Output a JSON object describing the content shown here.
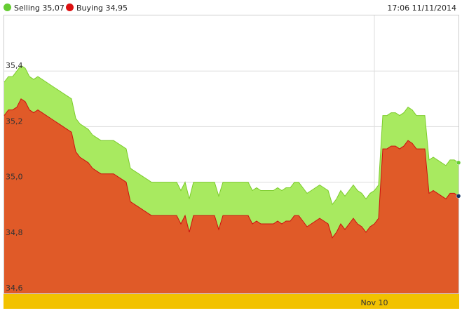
{
  "header": {
    "legend_selling": "Selling 35,07",
    "legend_buying": "Buying 34,95",
    "timestamp": "17:06 11/11/2014"
  },
  "colors": {
    "selling_fill": "#a8ea60",
    "selling_line": "#7ccc2c",
    "buying_fill": "#e05a28",
    "buying_line": "#cc1010",
    "selling_dot": "#66cc33",
    "buying_dot": "#dd1111",
    "xaxis_band": "#f2c200",
    "grid": "#dddddd"
  },
  "chart_data": {
    "type": "area",
    "ylim": [
      34.6,
      35.6
    ],
    "yticks": [
      {
        "value": 35.4,
        "label": "35,4"
      },
      {
        "value": 35.2,
        "label": "35,2"
      },
      {
        "value": 35.0,
        "label": "35,0"
      },
      {
        "value": 34.8,
        "label": "34,8"
      },
      {
        "value": 34.6,
        "label": "34,6"
      }
    ],
    "x_tick_labels": [
      {
        "index": 88,
        "label": "Nov 10"
      }
    ],
    "gridlines": true,
    "legend_position": "top-left",
    "series": [
      {
        "name": "Selling",
        "values": [
          35.36,
          35.38,
          35.38,
          35.4,
          35.42,
          35.41,
          35.38,
          35.37,
          35.38,
          35.37,
          35.36,
          35.35,
          35.34,
          35.33,
          35.32,
          35.31,
          35.3,
          35.23,
          35.21,
          35.2,
          35.19,
          35.17,
          35.16,
          35.15,
          35.15,
          35.15,
          35.15,
          35.14,
          35.13,
          35.12,
          35.05,
          35.04,
          35.03,
          35.02,
          35.01,
          35.0,
          35.0,
          35.0,
          35.0,
          35.0,
          35.0,
          35.0,
          34.97,
          35.0,
          34.94,
          35.0,
          35.0,
          35.0,
          35.0,
          35.0,
          35.0,
          34.95,
          35.0,
          35.0,
          35.0,
          35.0,
          35.0,
          35.0,
          35.0,
          34.97,
          34.98,
          34.97,
          34.97,
          34.97,
          34.97,
          34.98,
          34.97,
          34.98,
          34.98,
          35.0,
          35.0,
          34.98,
          34.96,
          34.97,
          34.98,
          34.99,
          34.98,
          34.97,
          34.92,
          34.94,
          34.97,
          34.95,
          34.97,
          34.99,
          34.97,
          34.96,
          34.94,
          34.96,
          34.97,
          34.99,
          35.24,
          35.24,
          35.25,
          35.25,
          35.24,
          35.25,
          35.27,
          35.26,
          35.24,
          35.24,
          35.24,
          35.08,
          35.09,
          35.08,
          35.07,
          35.06,
          35.08,
          35.08,
          35.07
        ]
      },
      {
        "name": "Buying",
        "values": [
          35.24,
          35.26,
          35.26,
          35.27,
          35.3,
          35.29,
          35.26,
          35.25,
          35.26,
          35.25,
          35.24,
          35.23,
          35.22,
          35.21,
          35.2,
          35.19,
          35.18,
          35.11,
          35.09,
          35.08,
          35.07,
          35.05,
          35.04,
          35.03,
          35.03,
          35.03,
          35.03,
          35.02,
          35.01,
          35.0,
          34.93,
          34.92,
          34.91,
          34.9,
          34.89,
          34.88,
          34.88,
          34.88,
          34.88,
          34.88,
          34.88,
          34.88,
          34.85,
          34.88,
          34.82,
          34.88,
          34.88,
          34.88,
          34.88,
          34.88,
          34.88,
          34.83,
          34.88,
          34.88,
          34.88,
          34.88,
          34.88,
          34.88,
          34.88,
          34.85,
          34.86,
          34.85,
          34.85,
          34.85,
          34.85,
          34.86,
          34.85,
          34.86,
          34.86,
          34.88,
          34.88,
          34.86,
          34.84,
          34.85,
          34.86,
          34.87,
          34.86,
          34.85,
          34.8,
          34.82,
          34.85,
          34.83,
          34.85,
          34.87,
          34.85,
          34.84,
          34.82,
          34.84,
          34.85,
          34.87,
          35.12,
          35.12,
          35.13,
          35.13,
          35.12,
          35.13,
          35.15,
          35.14,
          35.12,
          35.12,
          35.12,
          34.96,
          34.97,
          34.96,
          34.95,
          34.94,
          34.96,
          34.96,
          34.95
        ]
      }
    ]
  }
}
